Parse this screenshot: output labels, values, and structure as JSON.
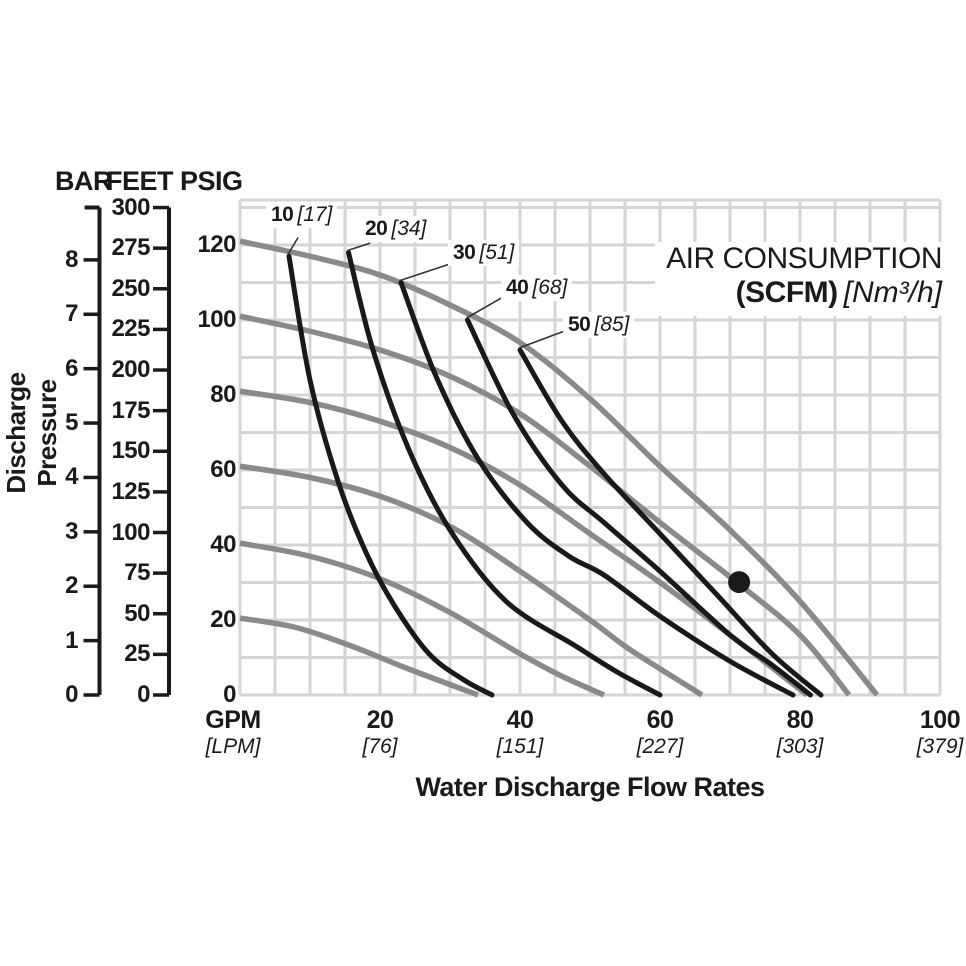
{
  "axis_headers": {
    "bar": "BAR",
    "feet": "FEET",
    "psig": "PSIG"
  },
  "y_axis_title": "Discharge Pressure",
  "x_axis_title": "Water Discharge Flow Rates",
  "air_box": {
    "title": "AIR CONSUMPTION",
    "unit_scfm": "(SCFM)",
    "unit_nm3h": "[Nm³/h]"
  },
  "colors": {
    "text": "#1a1a1a",
    "grid": "#d5d5d5",
    "pressure_curve": "#8a8a8a",
    "air_curve": "#191919",
    "axis": "#1a1a1a",
    "dot": "#1a1a1a",
    "leader": "#333333"
  },
  "chart_data": {
    "type": "line",
    "title": "AIR CONSUMPTION (SCFM) [Nm³/h]",
    "xlabel": "Water Discharge Flow Rates",
    "ylabel": "Discharge Pressure",
    "x_axis": {
      "unit_primary": "GPM",
      "unit_secondary": "[LPM]",
      "range_gpm": [
        0,
        100
      ],
      "grid_step_gpm": 5,
      "ticks": [
        {
          "value": 20,
          "gpm_label": "20",
          "lpm_label": "[76]"
        },
        {
          "value": 40,
          "gpm_label": "40",
          "lpm_label": "[151]"
        },
        {
          "value": 60,
          "gpm_label": "60",
          "lpm_label": "[227]"
        },
        {
          "value": 80,
          "gpm_label": "80",
          "lpm_label": "[303]"
        },
        {
          "value": 100,
          "gpm_label": "100",
          "lpm_label": "[379]"
        }
      ]
    },
    "y_axes": {
      "psig": {
        "range": [
          0,
          132
        ],
        "grid_step_psig": 10,
        "ticks": [
          0,
          20,
          40,
          60,
          80,
          100,
          120
        ]
      },
      "feet": {
        "ticks": [
          300,
          275,
          250,
          225,
          200,
          175,
          150,
          125,
          100,
          75,
          50,
          25,
          0
        ],
        "psi_per_foot": 0.4333
      },
      "bar": {
        "ticks": [
          8,
          7,
          6,
          5,
          4,
          3,
          2,
          1,
          0
        ],
        "psi_per_bar": 14.504
      }
    },
    "pressure_curves": [
      {
        "psig": 120,
        "points": [
          [
            0,
            121
          ],
          [
            10,
            117
          ],
          [
            20,
            112
          ],
          [
            30,
            104
          ],
          [
            40,
            94
          ],
          [
            50,
            79
          ],
          [
            60,
            61
          ],
          [
            70,
            44
          ],
          [
            80,
            25
          ],
          [
            91,
            0
          ]
        ]
      },
      {
        "psig": 100,
        "points": [
          [
            0,
            101
          ],
          [
            10,
            97
          ],
          [
            20,
            92
          ],
          [
            30,
            85
          ],
          [
            40,
            75
          ],
          [
            50,
            61
          ],
          [
            60,
            46
          ],
          [
            71,
            30
          ],
          [
            80,
            16
          ],
          [
            87,
            0
          ]
        ]
      },
      {
        "psig": 80,
        "points": [
          [
            0,
            81
          ],
          [
            10,
            78
          ],
          [
            20,
            73
          ],
          [
            30,
            66
          ],
          [
            40,
            56
          ],
          [
            50,
            43
          ],
          [
            60,
            30
          ],
          [
            70,
            16
          ],
          [
            81,
            0
          ]
        ]
      },
      {
        "psig": 60,
        "points": [
          [
            0,
            61
          ],
          [
            10,
            58
          ],
          [
            20,
            53
          ],
          [
            30,
            45
          ],
          [
            40,
            33
          ],
          [
            50,
            20
          ],
          [
            55,
            13
          ],
          [
            60,
            7
          ],
          [
            66,
            0
          ]
        ]
      },
      {
        "psig": 40,
        "points": [
          [
            0,
            40.5
          ],
          [
            10,
            37
          ],
          [
            20,
            31
          ],
          [
            30,
            22
          ],
          [
            40,
            11
          ],
          [
            46,
            5
          ],
          [
            52,
            0
          ]
        ]
      },
      {
        "psig": 20,
        "points": [
          [
            0,
            20.5
          ],
          [
            8,
            18
          ],
          [
            16,
            13
          ],
          [
            24,
            7
          ],
          [
            34,
            0
          ]
        ]
      }
    ],
    "air_curves": [
      {
        "scfm": 10,
        "scfm_label": "10",
        "nm3h_label": "[17]",
        "leader_from": [
          8.3,
          122
        ],
        "points": [
          [
            7,
            117
          ],
          [
            10,
            84
          ],
          [
            14,
            57
          ],
          [
            18,
            38
          ],
          [
            22,
            24
          ],
          [
            27,
            11
          ],
          [
            32,
            4
          ],
          [
            36,
            0
          ]
        ]
      },
      {
        "scfm": 20,
        "scfm_label": "20",
        "nm3h_label": "[34]",
        "leader_from": [
          18.6,
          120.5
        ],
        "points": [
          [
            15.5,
            118
          ],
          [
            19,
            92
          ],
          [
            24,
            66
          ],
          [
            30,
            44
          ],
          [
            38,
            25
          ],
          [
            48,
            13
          ],
          [
            54,
            6
          ],
          [
            60,
            0
          ]
        ]
      },
      {
        "scfm": 30,
        "scfm_label": "30",
        "nm3h_label": "[51]",
        "leader_from": [
          30.9,
          115.5
        ],
        "points": [
          [
            23,
            110
          ],
          [
            28,
            85
          ],
          [
            34,
            63
          ],
          [
            41,
            46
          ],
          [
            47,
            37
          ],
          [
            52,
            32
          ],
          [
            60,
            21
          ],
          [
            70,
            9
          ],
          [
            79,
            0
          ]
        ]
      },
      {
        "scfm": 40,
        "scfm_label": "40",
        "nm3h_label": "[68]",
        "leader_from": [
          38.4,
          107
        ],
        "points": [
          [
            32.5,
            100
          ],
          [
            39,
            75
          ],
          [
            46,
            56
          ],
          [
            52,
            46
          ],
          [
            60,
            33
          ],
          [
            70,
            16
          ],
          [
            76,
            8
          ],
          [
            81.5,
            0
          ]
        ]
      },
      {
        "scfm": 50,
        "scfm_label": "50",
        "nm3h_label": "[85]",
        "leader_from": [
          46.7,
          97.3
        ],
        "points": [
          [
            40,
            92
          ],
          [
            46,
            73
          ],
          [
            52,
            59
          ],
          [
            60,
            43
          ],
          [
            68,
            27
          ],
          [
            76,
            11
          ],
          [
            83,
            0
          ]
        ]
      }
    ],
    "operating_point": {
      "gpm": 71.3,
      "psig": 30.1
    }
  }
}
